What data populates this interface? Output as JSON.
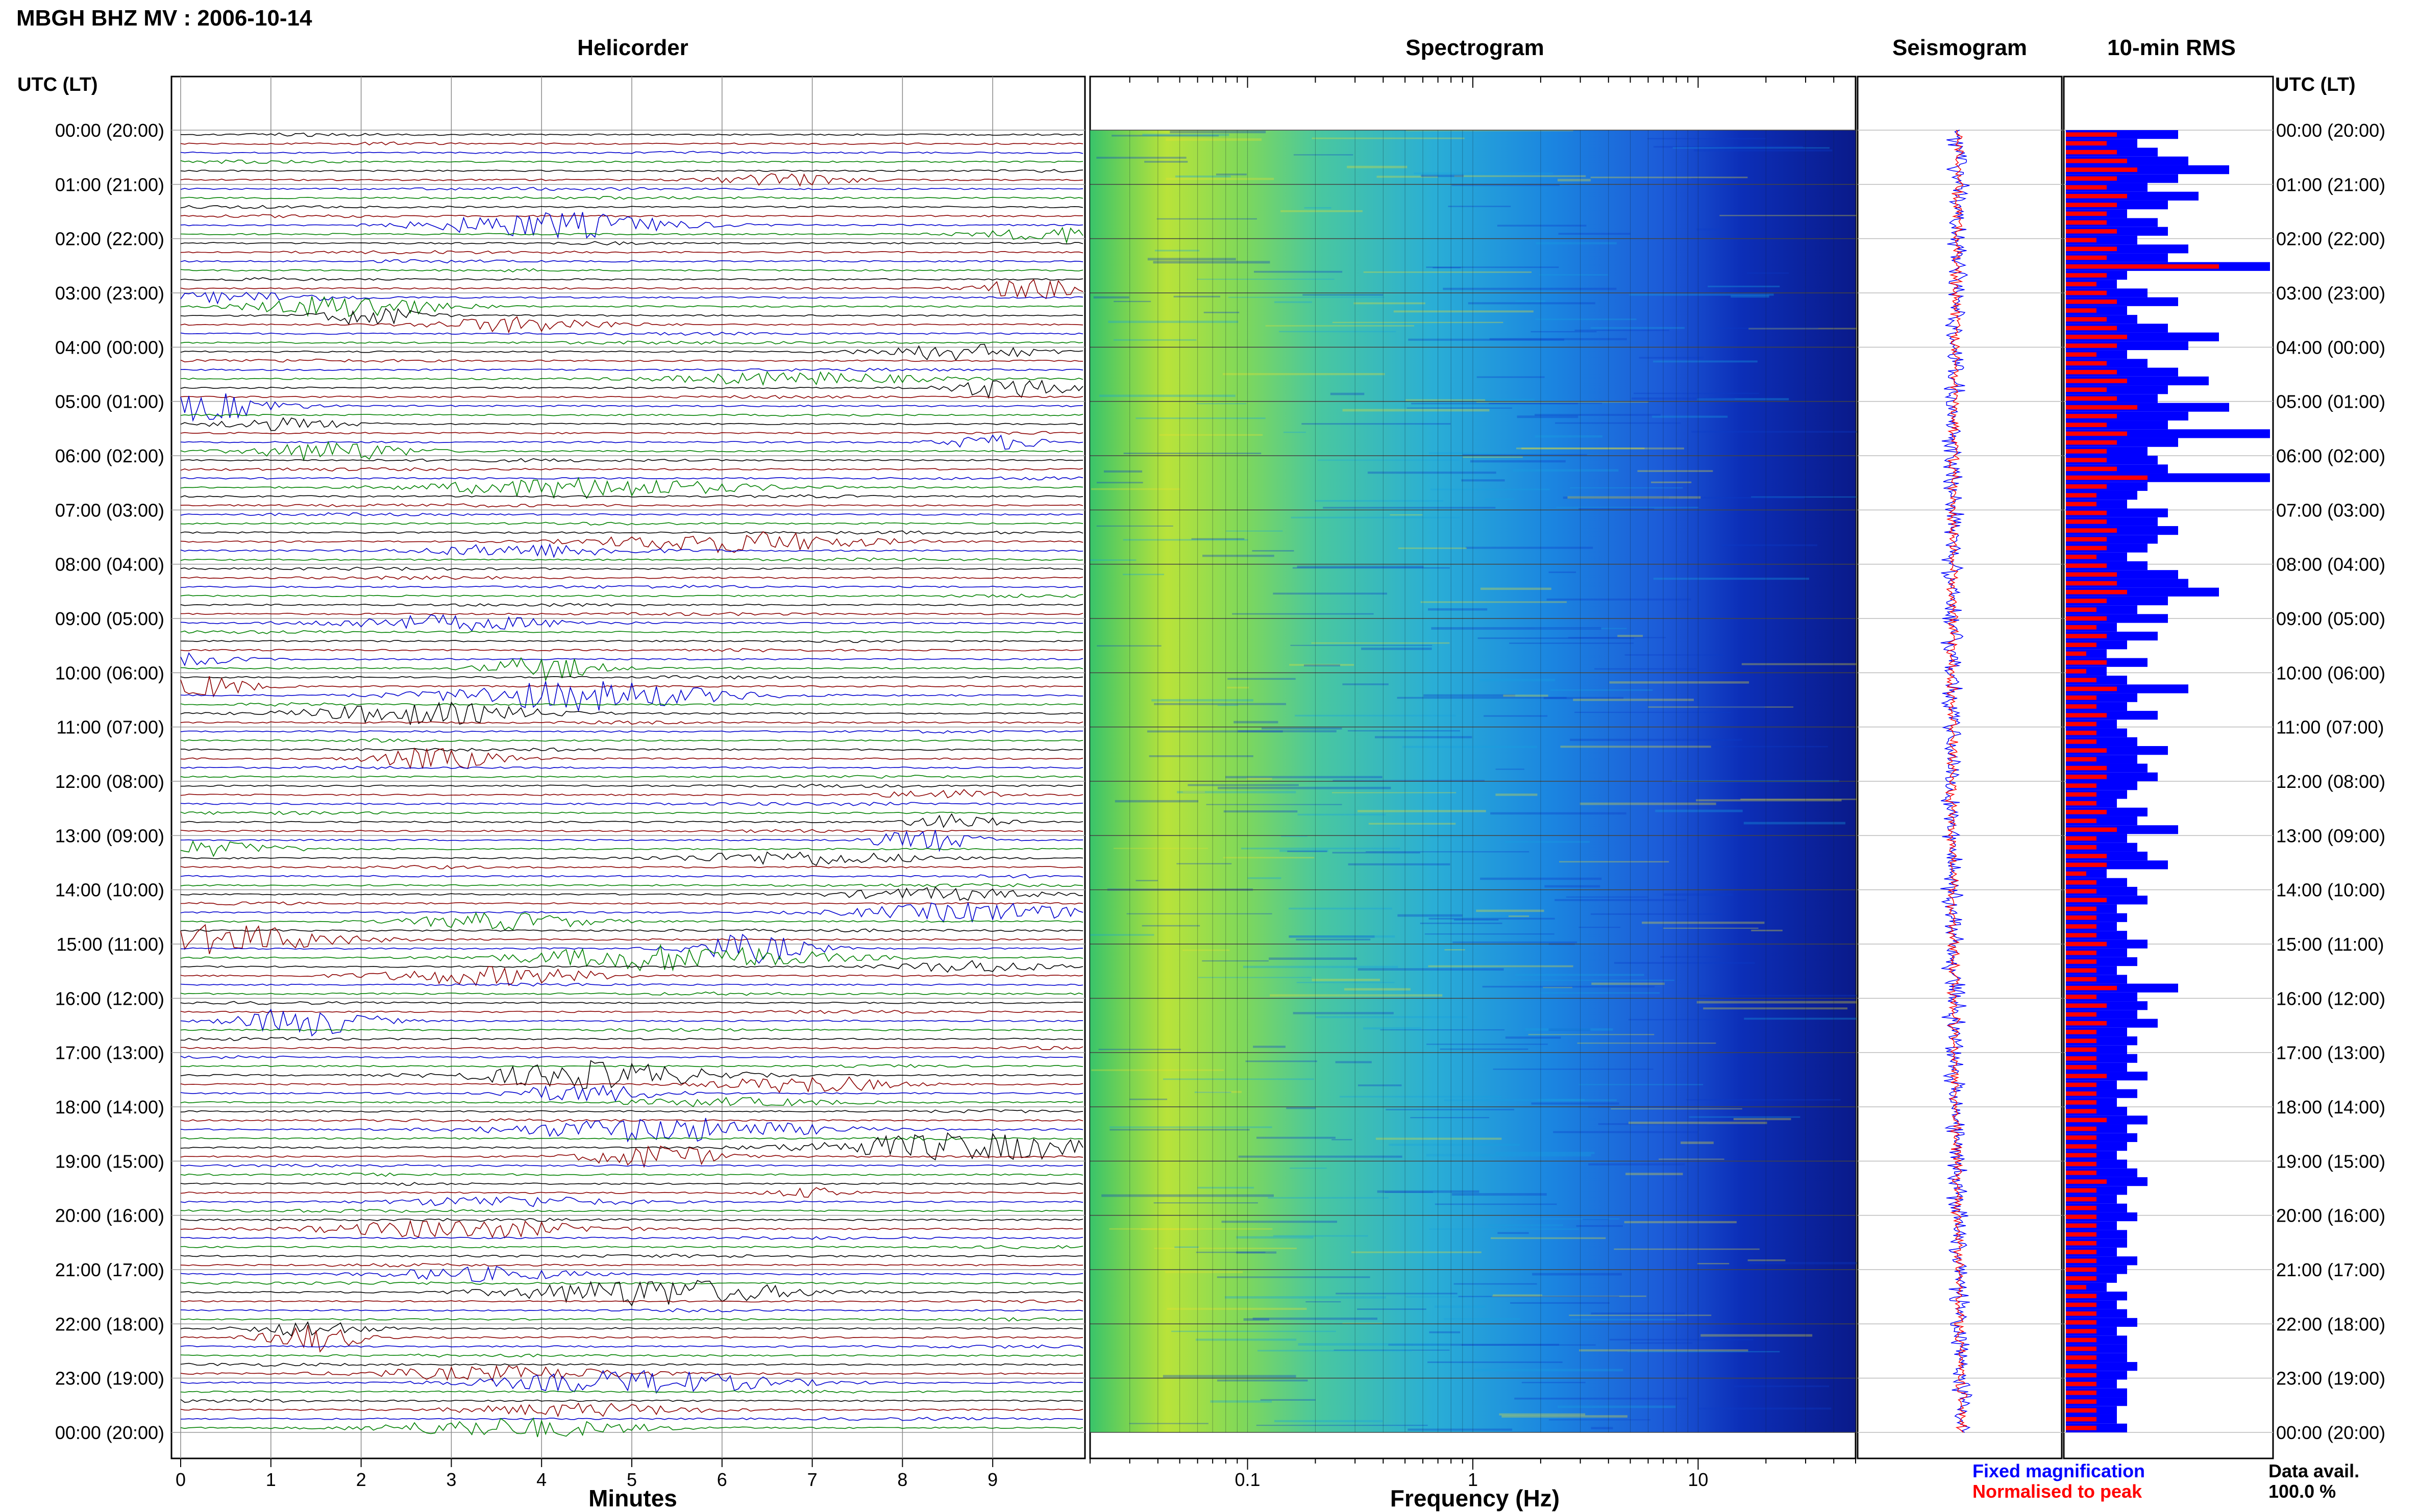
{
  "title": "MBGH BHZ MV : 2006-10-14",
  "panels": {
    "helicorder": "Helicorder",
    "spectrogram": "Spectrogram",
    "seismogram": "Seismogram",
    "rms": "10-min RMS"
  },
  "axis": {
    "time_header_left": "UTC (LT)",
    "time_header_right": "UTC (LT)",
    "helicorder_xlabel": "Minutes",
    "spectrogram_xlabel": "Frequency (Hz)"
  },
  "legend": {
    "fixed": "Fixed magnification",
    "normalised": "Normalised to peak",
    "fixed_color": "#0000ff",
    "normalised_color": "#ff0000"
  },
  "data_avail": {
    "label": "Data avail.",
    "value": "100.0 %"
  },
  "colors": {
    "trace_cycle": [
      "#000000",
      "#8b0000",
      "#0000cd",
      "#008000"
    ],
    "rms_fixed": "#0000ff",
    "rms_normalised": "#ff0000"
  },
  "chart_data": {
    "type": "heatmap",
    "time_labels": [
      "00:00 (20:00)",
      "01:00 (21:00)",
      "02:00 (22:00)",
      "03:00 (23:00)",
      "04:00 (00:00)",
      "05:00 (01:00)",
      "06:00 (02:00)",
      "07:00 (03:00)",
      "08:00 (04:00)",
      "09:00 (05:00)",
      "10:00 (06:00)",
      "11:00 (07:00)",
      "12:00 (08:00)",
      "13:00 (09:00)",
      "14:00 (10:00)",
      "15:00 (11:00)",
      "16:00 (12:00)",
      "17:00 (13:00)",
      "18:00 (14:00)",
      "19:00 (15:00)",
      "20:00 (16:00)",
      "21:00 (17:00)",
      "22:00 (18:00)",
      "23:00 (19:00)",
      "00:00 (20:00)"
    ],
    "helicorder": {
      "x_ticks": [
        0,
        1,
        2,
        3,
        4,
        5,
        6,
        7,
        8,
        9
      ],
      "xlim": [
        0,
        10
      ],
      "rows_per_hour": 6,
      "minutes_per_row": 10
    },
    "spectrogram": {
      "x_scale": "log",
      "x_ticks": [
        0.1,
        1,
        10
      ],
      "x_tick_labels": [
        "0.1",
        "1",
        "10"
      ],
      "xlim": [
        0.02,
        50
      ]
    },
    "rms": {
      "interval_minutes": 10,
      "fixed": [
        0.55,
        0.35,
        0.45,
        0.6,
        0.8,
        0.55,
        0.4,
        0.65,
        0.5,
        0.3,
        0.45,
        0.5,
        0.35,
        0.6,
        0.5,
        1.0,
        0.3,
        0.25,
        0.4,
        0.55,
        0.3,
        0.35,
        0.5,
        0.75,
        0.6,
        0.3,
        0.4,
        0.55,
        0.7,
        0.5,
        0.45,
        0.8,
        0.6,
        0.5,
        1.0,
        0.55,
        0.4,
        0.45,
        0.5,
        1.0,
        0.4,
        0.35,
        0.3,
        0.5,
        0.45,
        0.55,
        0.45,
        0.4,
        0.3,
        0.4,
        0.55,
        0.6,
        0.75,
        0.5,
        0.35,
        0.5,
        0.25,
        0.45,
        0.3,
        0.2,
        0.4,
        0.2,
        0.3,
        0.6,
        0.35,
        0.3,
        0.45,
        0.25,
        0.3,
        0.35,
        0.5,
        0.35,
        0.4,
        0.45,
        0.35,
        0.3,
        0.25,
        0.4,
        0.35,
        0.55,
        0.3,
        0.35,
        0.4,
        0.5,
        0.2,
        0.3,
        0.35,
        0.4,
        0.25,
        0.3,
        0.25,
        0.3,
        0.4,
        0.3,
        0.35,
        0.25,
        0.3,
        0.55,
        0.35,
        0.4,
        0.35,
        0.45,
        0.3,
        0.35,
        0.3,
        0.35,
        0.3,
        0.4,
        0.25,
        0.35,
        0.25,
        0.3,
        0.4,
        0.3,
        0.35,
        0.3,
        0.25,
        0.3,
        0.35,
        0.4,
        0.3,
        0.25,
        0.3,
        0.35,
        0.25,
        0.3,
        0.3,
        0.25,
        0.35,
        0.3,
        0.25,
        0.2,
        0.3,
        0.25,
        0.3,
        0.35,
        0.25,
        0.3,
        0.3,
        0.3,
        0.35,
        0.3,
        0.25,
        0.3,
        0.3,
        0.25,
        0.25,
        0.3
      ],
      "normalised": [
        0.25,
        0.2,
        0.25,
        0.3,
        0.35,
        0.25,
        0.2,
        0.3,
        0.25,
        0.2,
        0.2,
        0.25,
        0.15,
        0.25,
        0.2,
        0.75,
        0.2,
        0.15,
        0.2,
        0.25,
        0.15,
        0.2,
        0.25,
        0.3,
        0.25,
        0.15,
        0.2,
        0.25,
        0.3,
        0.2,
        0.25,
        0.35,
        0.25,
        0.2,
        0.3,
        0.25,
        0.2,
        0.2,
        0.25,
        0.4,
        0.2,
        0.15,
        0.15,
        0.2,
        0.2,
        0.25,
        0.2,
        0.2,
        0.15,
        0.2,
        0.25,
        0.25,
        0.3,
        0.2,
        0.15,
        0.2,
        0.15,
        0.2,
        0.15,
        0.1,
        0.2,
        0.1,
        0.15,
        0.25,
        0.15,
        0.15,
        0.2,
        0.15,
        0.15,
        0.15,
        0.2,
        0.15,
        0.2,
        0.2,
        0.15,
        0.15,
        0.15,
        0.2,
        0.15,
        0.25,
        0.15,
        0.15,
        0.2,
        0.2,
        0.1,
        0.15,
        0.15,
        0.2,
        0.15,
        0.15,
        0.15,
        0.15,
        0.2,
        0.15,
        0.15,
        0.15,
        0.15,
        0.25,
        0.15,
        0.2,
        0.15,
        0.2,
        0.15,
        0.15,
        0.15,
        0.15,
        0.15,
        0.2,
        0.15,
        0.15,
        0.15,
        0.15,
        0.2,
        0.15,
        0.15,
        0.15,
        0.15,
        0.15,
        0.15,
        0.2,
        0.15,
        0.15,
        0.15,
        0.15,
        0.15,
        0.15,
        0.15,
        0.15,
        0.15,
        0.15,
        0.15,
        0.1,
        0.15,
        0.15,
        0.15,
        0.15,
        0.15,
        0.15,
        0.15,
        0.15,
        0.15,
        0.15,
        0.15,
        0.15,
        0.15,
        0.15,
        0.15,
        0.15
      ]
    }
  }
}
